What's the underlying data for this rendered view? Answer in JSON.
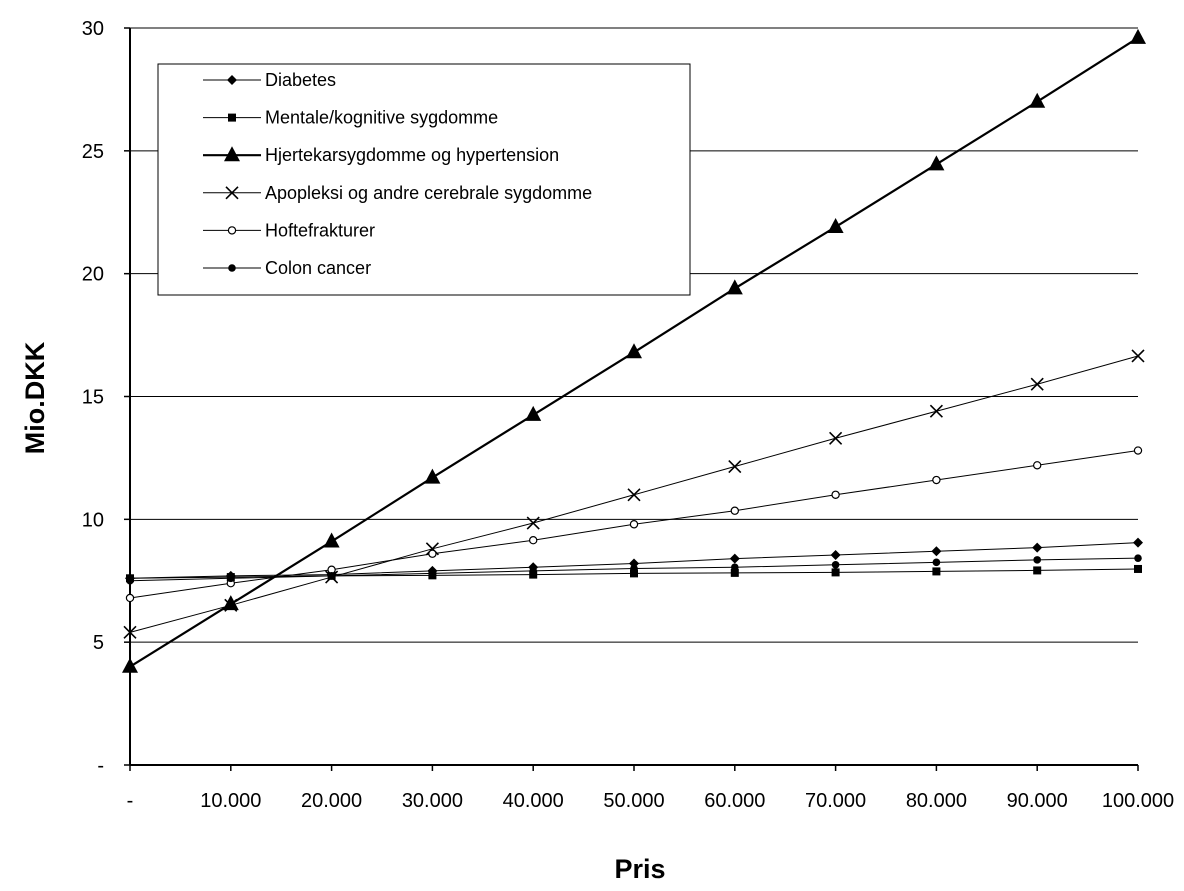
{
  "chart_data": {
    "type": "line",
    "title": "",
    "xlabel": "Pris",
    "ylabel": "Mio.DKK",
    "x": [
      0,
      10000,
      20000,
      30000,
      40000,
      50000,
      60000,
      70000,
      80000,
      90000,
      100000
    ],
    "x_tick_labels": [
      "-",
      "10.000",
      "20.000",
      "30.000",
      "40.000",
      "50.000",
      "60.000",
      "70.000",
      "80.000",
      "90.000",
      "100.000"
    ],
    "y_ticks": [
      0,
      5,
      10,
      15,
      20,
      25,
      30
    ],
    "y_tick_labels": [
      "-",
      "5",
      "10",
      "15",
      "20",
      "25",
      "30"
    ],
    "xlim": [
      0,
      100000
    ],
    "ylim": [
      0,
      30
    ],
    "grid": "horizontal",
    "legend_position": "top-left",
    "series": [
      {
        "name": "Diabetes",
        "marker": "diamond",
        "bold": false,
        "values": [
          7.6,
          7.7,
          7.75,
          7.9,
          8.05,
          8.2,
          8.4,
          8.55,
          8.7,
          8.85,
          9.05
        ]
      },
      {
        "name": "Mentale/kognitive sygdomme",
        "marker": "square",
        "bold": false,
        "values": [
          7.6,
          7.65,
          7.7,
          7.72,
          7.75,
          7.8,
          7.82,
          7.84,
          7.88,
          7.92,
          7.98
        ]
      },
      {
        "name": "Hjertekarsygdomme og hypertension",
        "marker": "triangle",
        "bold": true,
        "values": [
          4.0,
          6.55,
          9.1,
          11.7,
          14.25,
          16.8,
          19.4,
          21.9,
          24.45,
          27.0,
          29.6
        ]
      },
      {
        "name": "Apopleksi og andre cerebrale sygdomme",
        "marker": "x",
        "bold": false,
        "values": [
          5.4,
          6.5,
          7.65,
          8.8,
          9.85,
          11.0,
          12.15,
          13.3,
          14.4,
          15.5,
          16.65
        ]
      },
      {
        "name": "Hoftefrakturer",
        "marker": "circle-open",
        "bold": false,
        "values": [
          6.8,
          7.4,
          7.95,
          8.6,
          9.15,
          9.8,
          10.35,
          11.0,
          11.6,
          12.2,
          12.8
        ]
      },
      {
        "name": "Colon cancer",
        "marker": "circle-filled",
        "bold": false,
        "values": [
          7.5,
          7.6,
          7.7,
          7.8,
          7.9,
          8.0,
          8.05,
          8.15,
          8.25,
          8.35,
          8.42
        ]
      }
    ]
  }
}
